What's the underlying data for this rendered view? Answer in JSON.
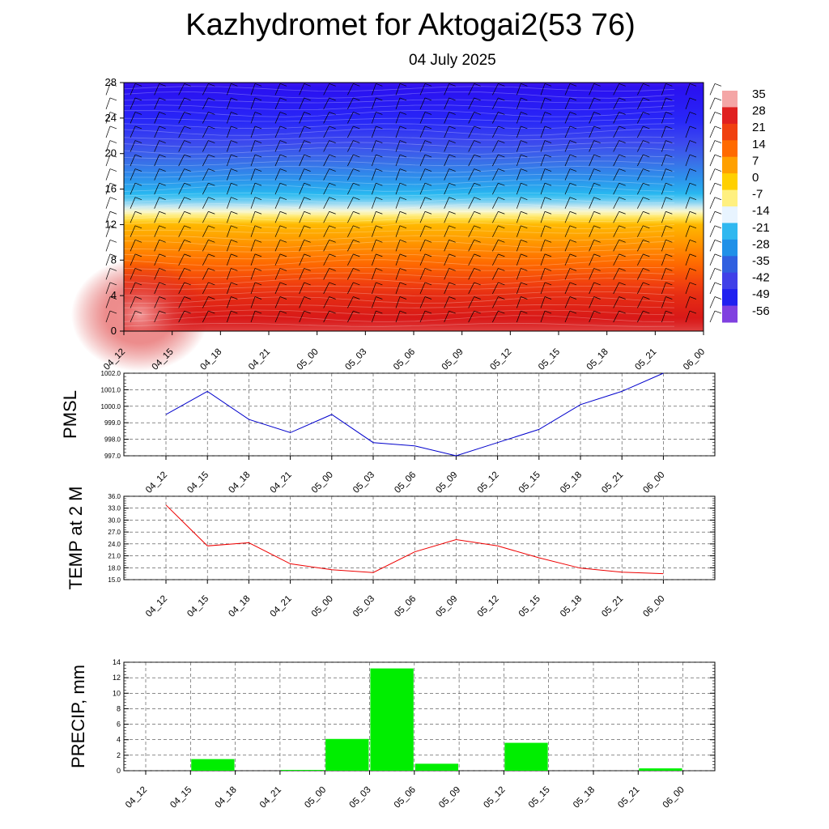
{
  "page": {
    "title": "Kazhydromet for Aktogai2(53 76)",
    "subtitle": "04 July 2025"
  },
  "chart_data": [
    {
      "type": "heatmap",
      "title": "",
      "x_categories": [
        "04_12",
        "04_15",
        "04_18",
        "04_21",
        "05_00",
        "05_03",
        "05_06",
        "05_09",
        "05_12",
        "05_15",
        "05_18",
        "05_21",
        "06_00"
      ],
      "ylim": [
        0,
        28
      ],
      "y_ticks": [
        0,
        4,
        8,
        12,
        16,
        20,
        24,
        28
      ],
      "colorbar": {
        "labels": [
          "35",
          "28",
          "21",
          "14",
          "7",
          "0",
          "-7",
          "-14",
          "-21",
          "-28",
          "-35",
          "-42",
          "-49",
          "-56"
        ],
        "colors": [
          "#f4a6a6",
          "#e02020",
          "#f04010",
          "#ff6a00",
          "#ffa000",
          "#ffd000",
          "#fff080",
          "#e8f4ff",
          "#30b8f0",
          "#2090e8",
          "#3060e0",
          "#4040e8",
          "#2020f0",
          "#8040e0"
        ]
      },
      "levels": [
        {
          "level": 0,
          "temperature": 30
        },
        {
          "level": 4,
          "temperature": 24
        },
        {
          "level": 8,
          "temperature": 13
        },
        {
          "level": 12,
          "temperature": 2
        },
        {
          "level": 13.5,
          "temperature": -12
        },
        {
          "level": 16,
          "temperature": -24
        },
        {
          "level": 20,
          "temperature": -38
        },
        {
          "level": 24,
          "temperature": -50
        },
        {
          "level": 28,
          "temperature": -57
        }
      ],
      "has_wind_barbs": true
    },
    {
      "type": "line",
      "ylabel": "PMSL",
      "categories": [
        "04_12",
        "04_15",
        "04_18",
        "04_21",
        "05_00",
        "05_03",
        "05_06",
        "05_09",
        "05_12",
        "05_15",
        "05_18",
        "05_21",
        "06_00"
      ],
      "values": [
        999.5,
        1000.9,
        999.2,
        998.4,
        999.5,
        997.8,
        997.6,
        997.0,
        997.8,
        998.6,
        1000.1,
        1000.9,
        1002.0
      ],
      "ylim": [
        997.0,
        1002.0
      ],
      "y_ticks": [
        "997.0",
        "998.0",
        "999.0",
        "1000.0",
        "1001.0",
        "1002.0"
      ],
      "color": "#0000cc",
      "grid": true
    },
    {
      "type": "line",
      "ylabel": "TEMP at 2 M",
      "categories": [
        "04_12",
        "04_15",
        "04_18",
        "04_21",
        "05_00",
        "05_03",
        "05_06",
        "05_09",
        "05_12",
        "05_15",
        "05_18",
        "05_21",
        "06_00"
      ],
      "values": [
        33.8,
        23.5,
        24.3,
        19.0,
        17.5,
        16.8,
        22.0,
        25.1,
        23.5,
        20.5,
        17.9,
        16.9,
        16.5
      ],
      "ylim": [
        15.0,
        36.0
      ],
      "y_ticks": [
        "15.0",
        "18.0",
        "21.0",
        "24.0",
        "27.0",
        "30.0",
        "33.0",
        "36.0"
      ],
      "color": "#ee0000",
      "grid": true
    },
    {
      "type": "bar",
      "ylabel": "PRECIP, mm",
      "categories": [
        "04_12",
        "04_15",
        "04_18",
        "04_21",
        "05_00",
        "05_03",
        "05_06",
        "05_09",
        "05_12",
        "05_15",
        "05_18",
        "05_21",
        "06_00"
      ],
      "values": [
        0,
        1.5,
        0,
        0.1,
        4.1,
        13.2,
        0.9,
        0,
        3.6,
        0,
        0,
        0.3,
        0
      ],
      "ylim": [
        0,
        14
      ],
      "y_ticks": [
        "0",
        "2",
        "4",
        "6",
        "8",
        "10",
        "12",
        "14"
      ],
      "color": "#00ee00",
      "grid": true
    }
  ]
}
